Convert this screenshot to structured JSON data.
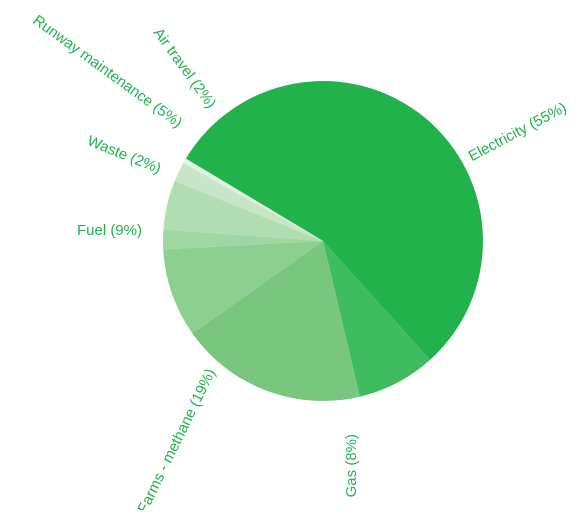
{
  "chart_data": {
    "type": "pie",
    "title": "",
    "slices": [
      {
        "label": "Electricity (55%)",
        "value": 55,
        "color": "#22b24c"
      },
      {
        "label": "Gas (8%)",
        "value": 8,
        "color": "#3fbc5f"
      },
      {
        "label": "Farms - methane (19%)",
        "value": 19,
        "color": "#79c77f"
      },
      {
        "label": "Fuel (9%)",
        "value": 9,
        "color": "#8ccf90"
      },
      {
        "label": "Waste (2%)",
        "value": 2,
        "color": "#9fd6a2"
      },
      {
        "label": "Runway maintenance (5%)",
        "value": 5,
        "color": "#b2ddb3"
      },
      {
        "label": "Air travel (2%)",
        "value": 2,
        "color": "#c7e6c7"
      },
      {
        "label": "",
        "value": 0.5,
        "color": "#e2f2e2"
      }
    ],
    "label_color": "#22b24c"
  }
}
